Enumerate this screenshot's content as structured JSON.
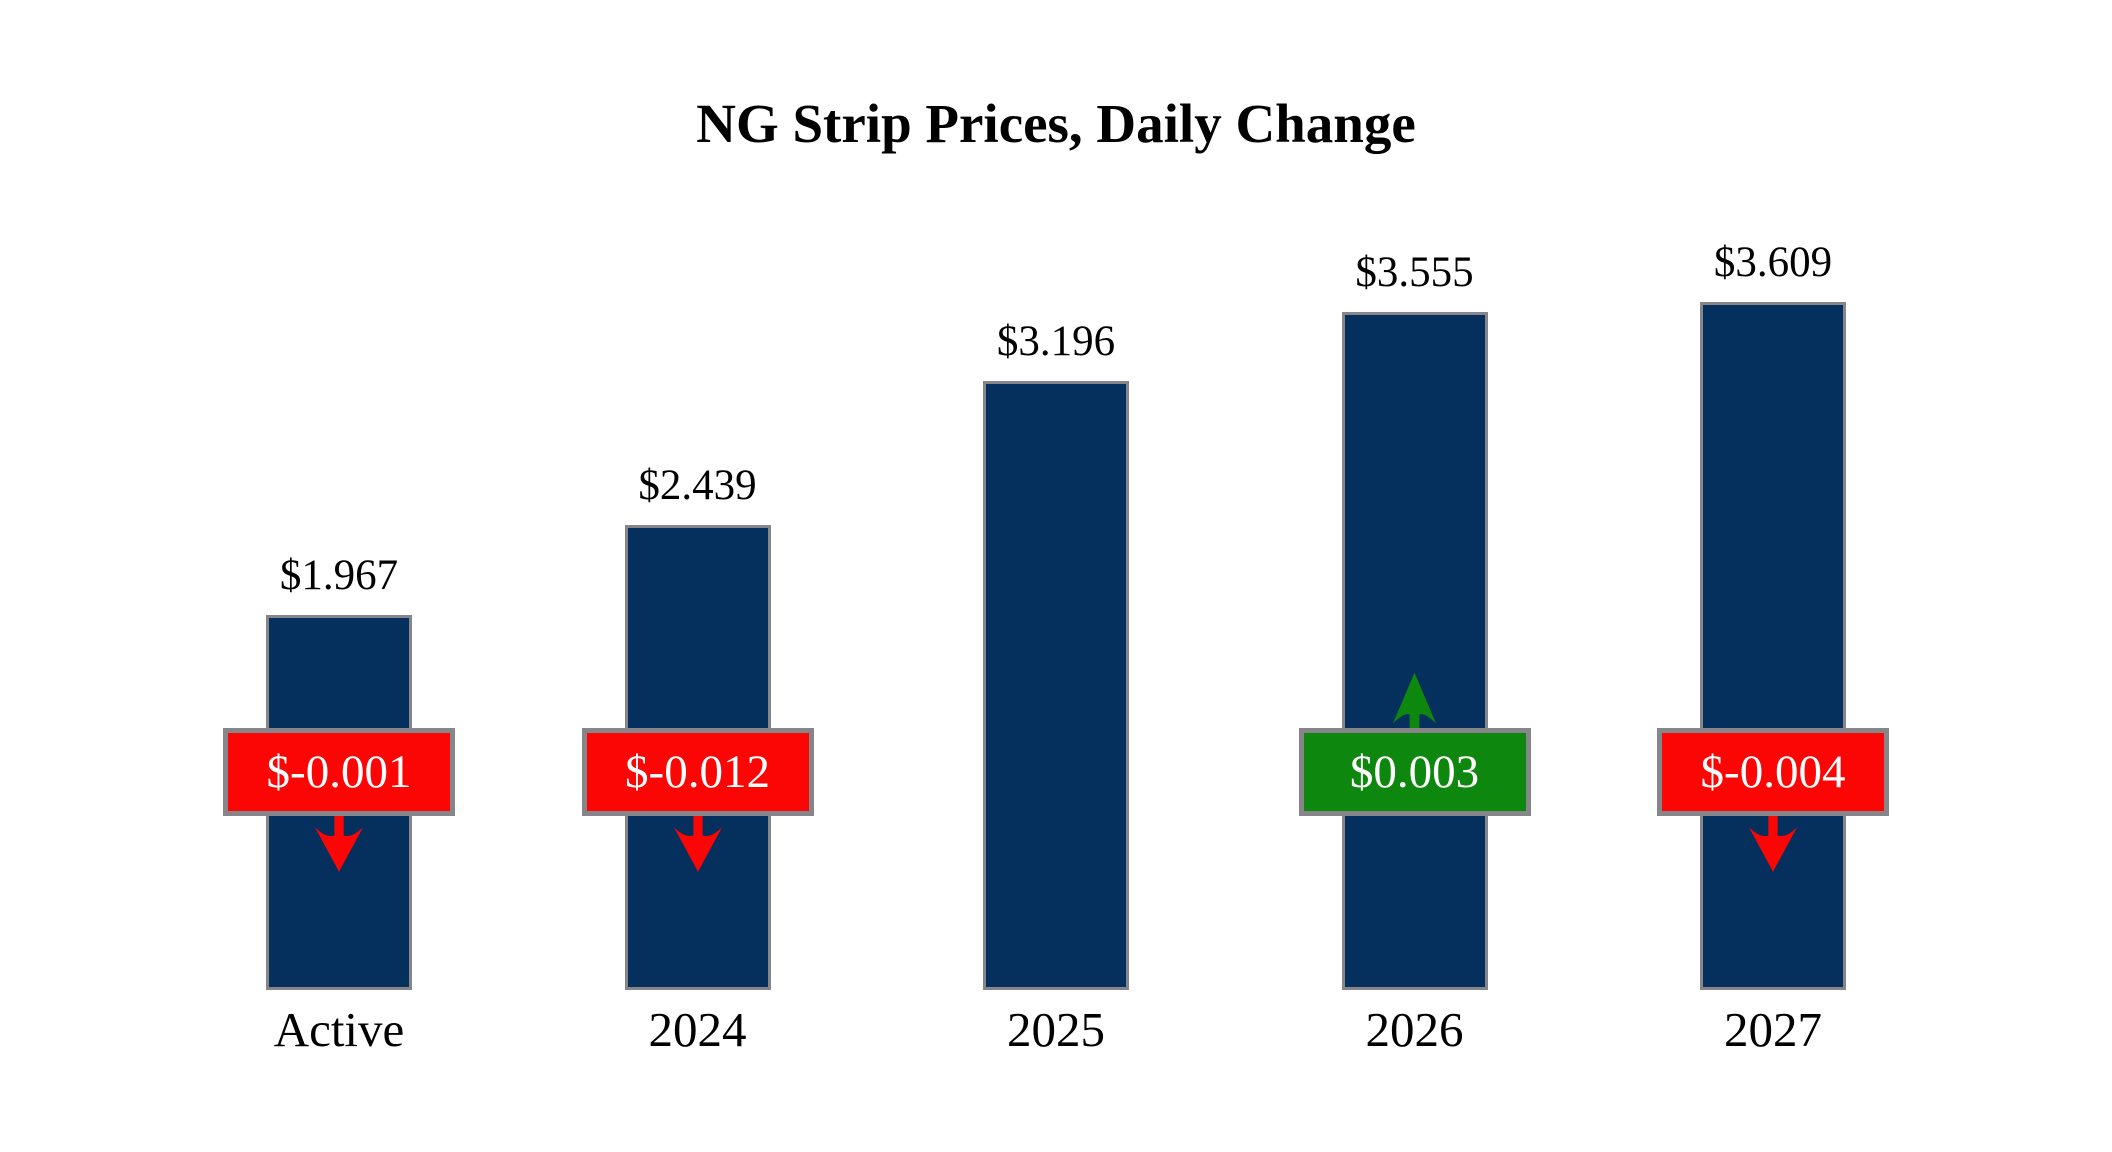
{
  "chart_data": {
    "type": "bar",
    "title": "NG Strip Prices, Daily Change",
    "xlabel": "",
    "ylabel": "",
    "ylim": [
      0,
      3.8
    ],
    "grid": false,
    "legend": false,
    "categories": [
      "Active",
      "2024",
      "2025",
      "2026",
      "2027"
    ],
    "values": [
      1.967,
      2.439,
      3.196,
      3.555,
      3.609
    ],
    "bars": [
      {
        "category": "Active",
        "value": 1.967,
        "value_label": "$1.967",
        "change": -0.001,
        "change_label": "$-0.001",
        "direction": "down"
      },
      {
        "category": "2024",
        "value": 2.439,
        "value_label": "$2.439",
        "change": -0.012,
        "change_label": "$-0.012",
        "direction": "down"
      },
      {
        "category": "2025",
        "value": 3.196,
        "value_label": "$3.196",
        "change": null,
        "change_label": null,
        "direction": null
      },
      {
        "category": "2026",
        "value": 3.555,
        "value_label": "$3.555",
        "change": 0.003,
        "change_label": "$0.003",
        "direction": "up"
      },
      {
        "category": "2027",
        "value": 3.609,
        "value_label": "$3.609",
        "change": -0.004,
        "change_label": "$-0.004",
        "direction": "down"
      }
    ],
    "colors": {
      "bar_fill": "#052F5C",
      "bar_border": "#85858A",
      "negative_badge": "#FB0505",
      "positive_badge": "#0E870E",
      "badge_border": "#85858A",
      "badge_text": "#FFFFFF",
      "text": "#000000",
      "background": "#FFFFFF"
    }
  }
}
